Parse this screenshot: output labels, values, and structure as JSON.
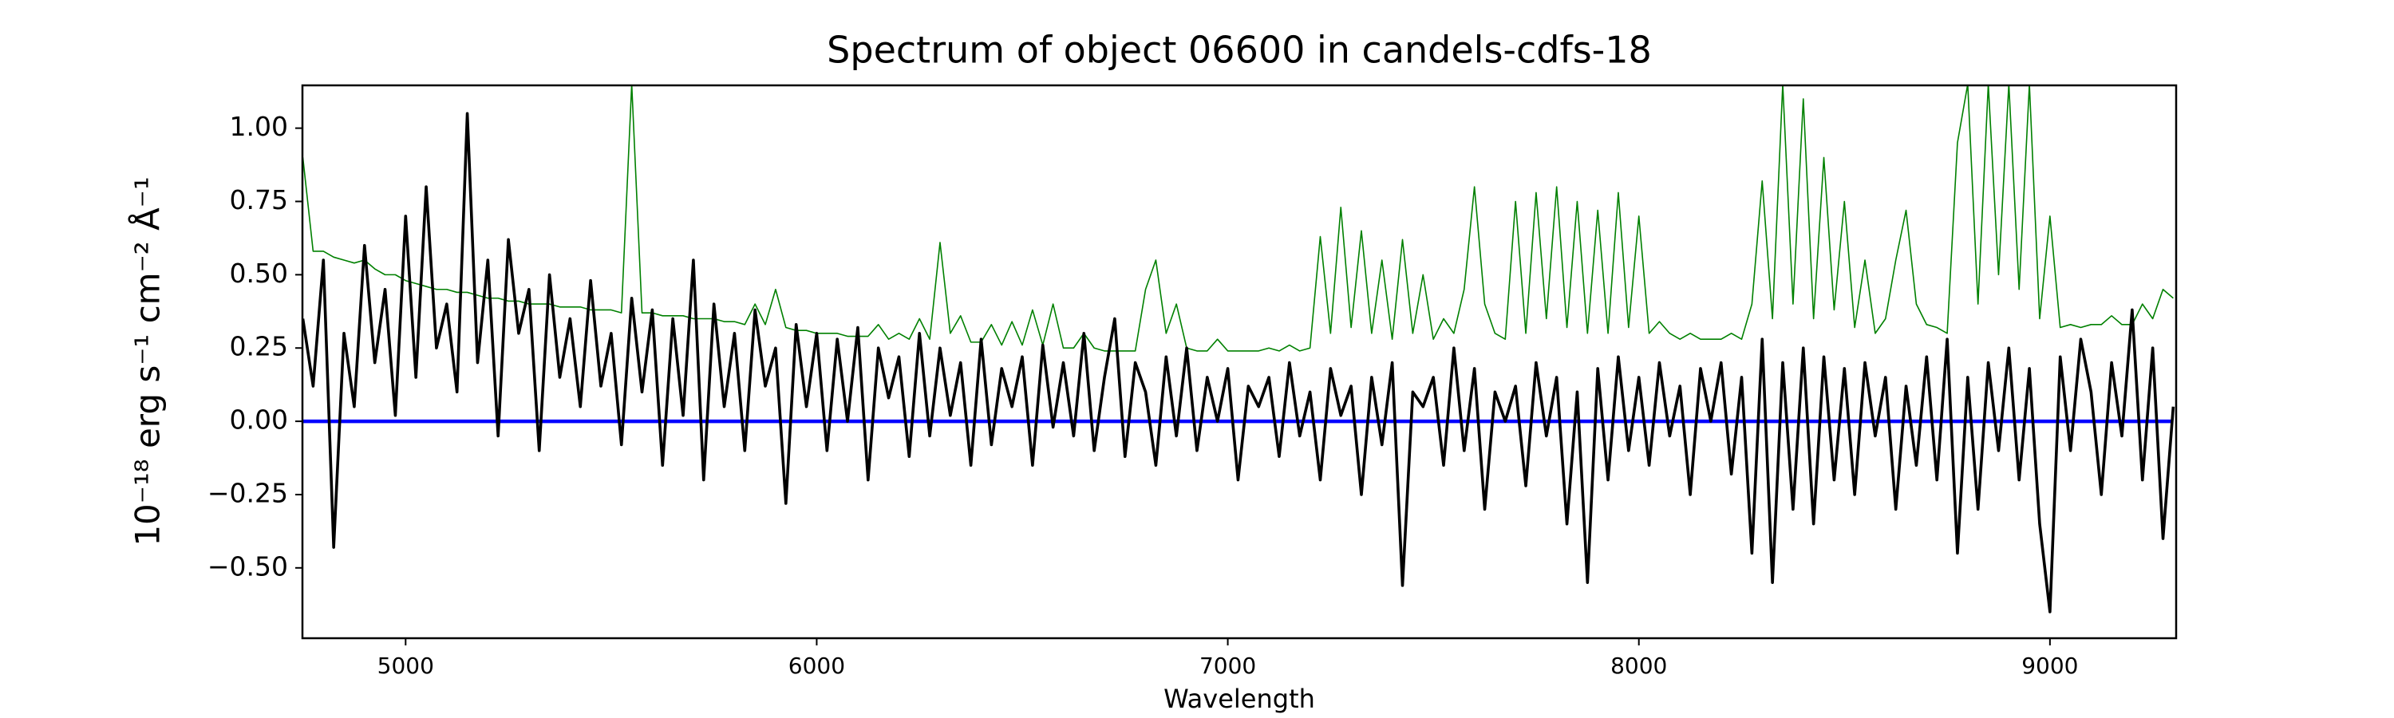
{
  "chart_data": {
    "type": "line",
    "title": "Spectrum of object 06600 in candels-cdfs-18",
    "x_label": "Wavelength",
    "y_label": "10⁻¹⁸ erg s⁻¹ cm⁻² Å⁻¹",
    "x": [
      4750,
      4775,
      4800,
      4825,
      4850,
      4875,
      4900,
      4925,
      4950,
      4975,
      5000,
      5025,
      5050,
      5075,
      5100,
      5125,
      5150,
      5175,
      5200,
      5225,
      5250,
      5275,
      5300,
      5325,
      5350,
      5375,
      5400,
      5425,
      5450,
      5475,
      5500,
      5525,
      5550,
      5575,
      5600,
      5625,
      5650,
      5675,
      5700,
      5725,
      5750,
      5775,
      5800,
      5825,
      5850,
      5875,
      5900,
      5925,
      5950,
      5975,
      6000,
      6025,
      6050,
      6075,
      6100,
      6125,
      6150,
      6175,
      6200,
      6225,
      6250,
      6275,
      6300,
      6325,
      6350,
      6375,
      6400,
      6425,
      6450,
      6475,
      6500,
      6525,
      6550,
      6575,
      6600,
      6625,
      6650,
      6675,
      6700,
      6725,
      6750,
      6775,
      6800,
      6825,
      6850,
      6875,
      6900,
      6925,
      6950,
      6975,
      7000,
      7025,
      7050,
      7075,
      7100,
      7125,
      7150,
      7175,
      7200,
      7225,
      7250,
      7275,
      7300,
      7325,
      7350,
      7375,
      7400,
      7425,
      7450,
      7475,
      7500,
      7525,
      7550,
      7575,
      7600,
      7625,
      7650,
      7675,
      7700,
      7725,
      7750,
      7775,
      7800,
      7825,
      7850,
      7875,
      7900,
      7925,
      7950,
      7975,
      8000,
      8025,
      8050,
      8075,
      8100,
      8125,
      8150,
      8175,
      8200,
      8225,
      8250,
      8275,
      8300,
      8325,
      8350,
      8375,
      8400,
      8425,
      8450,
      8475,
      8500,
      8525,
      8550,
      8575,
      8600,
      8625,
      8650,
      8675,
      8700,
      8725,
      8750,
      8775,
      8800,
      8825,
      8850,
      8875,
      8900,
      8925,
      8950,
      8975,
      9000,
      9025,
      9050,
      9075,
      9100,
      9125,
      9150,
      9175,
      9200,
      9225,
      9250,
      9275,
      9300
    ],
    "series": [
      {
        "color": "#008000",
        "width": 1.6,
        "values": [
          0.9,
          0.58,
          0.58,
          0.56,
          0.55,
          0.54,
          0.55,
          0.52,
          0.5,
          0.5,
          0.48,
          0.47,
          0.46,
          0.45,
          0.45,
          0.44,
          0.44,
          0.43,
          0.42,
          0.42,
          0.41,
          0.41,
          0.4,
          0.4,
          0.4,
          0.39,
          0.39,
          0.39,
          0.38,
          0.38,
          0.38,
          0.37,
          1.15,
          0.37,
          0.37,
          0.36,
          0.36,
          0.36,
          0.35,
          0.35,
          0.35,
          0.34,
          0.34,
          0.33,
          0.4,
          0.33,
          0.45,
          0.32,
          0.31,
          0.31,
          0.3,
          0.3,
          0.3,
          0.29,
          0.29,
          0.29,
          0.33,
          0.28,
          0.3,
          0.28,
          0.35,
          0.28,
          0.61,
          0.3,
          0.36,
          0.27,
          0.27,
          0.33,
          0.26,
          0.34,
          0.26,
          0.38,
          0.26,
          0.4,
          0.25,
          0.25,
          0.3,
          0.25,
          0.24,
          0.24,
          0.24,
          0.24,
          0.45,
          0.55,
          0.3,
          0.4,
          0.25,
          0.24,
          0.24,
          0.28,
          0.24,
          0.24,
          0.24,
          0.24,
          0.25,
          0.24,
          0.26,
          0.24,
          0.25,
          0.63,
          0.3,
          0.73,
          0.32,
          0.65,
          0.3,
          0.55,
          0.28,
          0.62,
          0.3,
          0.5,
          0.28,
          0.35,
          0.3,
          0.45,
          0.8,
          0.4,
          0.3,
          0.28,
          0.75,
          0.3,
          0.78,
          0.35,
          0.8,
          0.32,
          0.75,
          0.3,
          0.72,
          0.3,
          0.78,
          0.32,
          0.7,
          0.3,
          0.34,
          0.3,
          0.28,
          0.3,
          0.28,
          0.28,
          0.28,
          0.3,
          0.28,
          0.4,
          0.82,
          0.35,
          1.15,
          0.4,
          1.1,
          0.35,
          0.9,
          0.38,
          0.75,
          0.32,
          0.55,
          0.3,
          0.35,
          0.55,
          0.72,
          0.4,
          0.33,
          0.32,
          0.3,
          0.95,
          1.15,
          0.4,
          1.15,
          0.5,
          1.15,
          0.45,
          1.15,
          0.35,
          0.7,
          0.32,
          0.33,
          0.32,
          0.33,
          0.33,
          0.36,
          0.33,
          0.33,
          0.4,
          0.35,
          0.45,
          0.42
        ]
      },
      {
        "color": "#0000ff",
        "width": 4.5,
        "x": [
          4750,
          9300
        ],
        "values": [
          0,
          0
        ]
      },
      {
        "color": "#000000",
        "width": 3.6,
        "values": [
          0.35,
          0.12,
          0.55,
          -0.43,
          0.3,
          0.05,
          0.6,
          0.2,
          0.45,
          0.02,
          0.7,
          0.15,
          0.8,
          0.25,
          0.4,
          0.1,
          1.05,
          0.2,
          0.55,
          -0.05,
          0.62,
          0.3,
          0.45,
          -0.1,
          0.5,
          0.15,
          0.35,
          0.05,
          0.48,
          0.12,
          0.3,
          -0.08,
          0.42,
          0.1,
          0.38,
          -0.15,
          0.35,
          0.02,
          0.55,
          -0.2,
          0.4,
          0.05,
          0.3,
          -0.1,
          0.38,
          0.12,
          0.25,
          -0.28,
          0.33,
          0.05,
          0.3,
          -0.1,
          0.28,
          0.0,
          0.32,
          -0.2,
          0.25,
          0.08,
          0.22,
          -0.12,
          0.3,
          -0.05,
          0.25,
          0.02,
          0.2,
          -0.15,
          0.28,
          -0.08,
          0.18,
          0.05,
          0.22,
          -0.15,
          0.26,
          -0.02,
          0.2,
          -0.05,
          0.3,
          -0.1,
          0.15,
          0.35,
          -0.12,
          0.2,
          0.1,
          -0.15,
          0.22,
          -0.05,
          0.25,
          -0.1,
          0.15,
          0.0,
          0.18,
          -0.2,
          0.12,
          0.05,
          0.15,
          -0.12,
          0.2,
          -0.05,
          0.1,
          -0.2,
          0.18,
          0.02,
          0.12,
          -0.25,
          0.15,
          -0.08,
          0.2,
          -0.56,
          0.1,
          0.05,
          0.15,
          -0.15,
          0.25,
          -0.1,
          0.18,
          -0.3,
          0.1,
          0.0,
          0.12,
          -0.22,
          0.2,
          -0.05,
          0.15,
          -0.35,
          0.1,
          -0.55,
          0.18,
          -0.2,
          0.22,
          -0.1,
          0.15,
          -0.15,
          0.2,
          -0.05,
          0.12,
          -0.25,
          0.18,
          0.0,
          0.2,
          -0.18,
          0.15,
          -0.45,
          0.28,
          -0.55,
          0.2,
          -0.3,
          0.25,
          -0.35,
          0.22,
          -0.2,
          0.18,
          -0.25,
          0.2,
          -0.05,
          0.15,
          -0.3,
          0.12,
          -0.15,
          0.22,
          -0.2,
          0.28,
          -0.45,
          0.15,
          -0.3,
          0.2,
          -0.1,
          0.25,
          -0.2,
          0.18,
          -0.35,
          -0.65,
          0.22,
          -0.1,
          0.28,
          0.1,
          -0.25,
          0.2,
          -0.05,
          0.38,
          -0.2,
          0.25,
          -0.4,
          0.05
        ]
      }
    ],
    "xlim": [
      4749,
      9307
    ],
    "ylim": [
      -0.74,
      1.146
    ],
    "xticks": [
      5000,
      6000,
      7000,
      8000,
      9000
    ],
    "yticks": [
      {
        "value": -0.5,
        "label": "−0.50"
      },
      {
        "value": -0.25,
        "label": "−0.25"
      },
      {
        "value": 0,
        "label": "0.00"
      },
      {
        "value": 0.25,
        "label": "0.25"
      },
      {
        "value": 0.5,
        "label": "0.50"
      },
      {
        "value": 0.75,
        "label": "0.75"
      },
      {
        "value": 1,
        "label": "1.00"
      }
    ],
    "grid": false
  }
}
